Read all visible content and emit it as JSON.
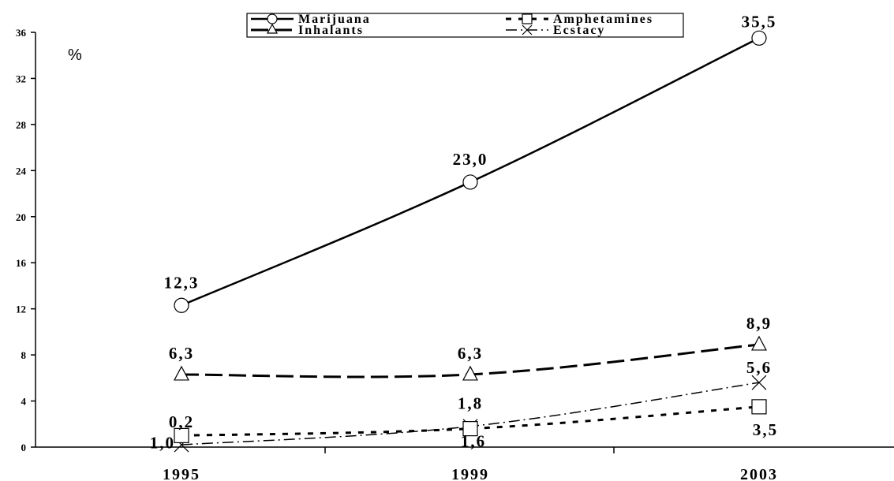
{
  "chart_data": {
    "type": "line",
    "categories": [
      "1995",
      "1999",
      "2003"
    ],
    "ylabel": "%",
    "ylim": [
      0,
      36
    ],
    "yticks": [
      "0",
      "4",
      "8",
      "12",
      "16",
      "20",
      "24",
      "28",
      "32",
      "36"
    ],
    "grid": false,
    "legend_position": "top",
    "series": [
      {
        "name": "Marijuana",
        "values": [
          12.3,
          23.0,
          35.5
        ],
        "labels": [
          "12,3",
          "23,0",
          "35,5"
        ],
        "marker": "circle",
        "dash": "solid"
      },
      {
        "name": "Amphetamines",
        "values": [
          1.0,
          1.6,
          3.5
        ],
        "labels": [
          "1,0",
          "1,6",
          "3,5"
        ],
        "marker": "square",
        "dash": "dashed-short"
      },
      {
        "name": "Inhalants",
        "values": [
          6.3,
          6.3,
          8.9
        ],
        "labels": [
          "6,3",
          "6,3",
          "8,9"
        ],
        "marker": "triangle",
        "dash": "dashed-long"
      },
      {
        "name": "Ecstacy",
        "values": [
          0.2,
          1.8,
          5.6
        ],
        "labels": [
          "0,2",
          "1,8",
          "5,6"
        ],
        "marker": "x",
        "dash": "dash-dot"
      }
    ]
  }
}
